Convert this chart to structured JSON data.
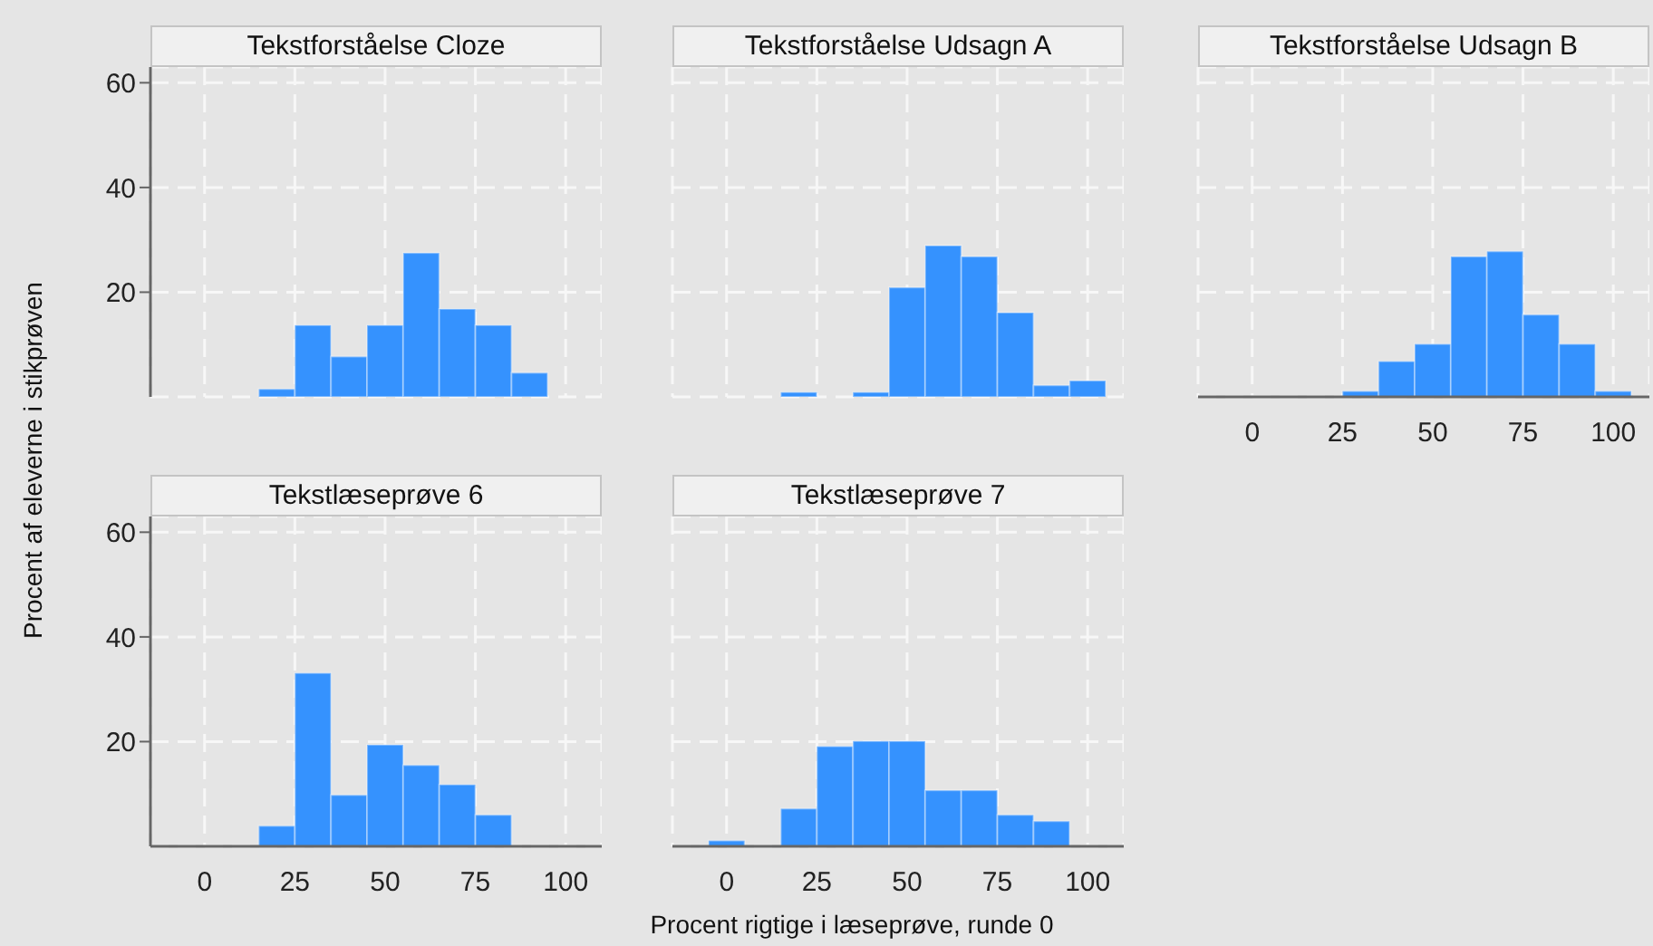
{
  "chart_data": [
    {
      "type": "histogram",
      "title": "Tekstforståelse Cloze",
      "ylabel": "Procent af eleverne i stikprøven",
      "bins": [
        15,
        25,
        35,
        45,
        55,
        65,
        75,
        85,
        95
      ],
      "values": [
        1.5,
        13.7,
        7.7,
        13.7,
        27.5,
        16.8,
        13.7,
        4.6
      ],
      "color": "#3592fe",
      "xlim": [
        -15,
        110
      ],
      "ylim": [
        0,
        63
      ],
      "xticks": [
        0,
        25,
        50,
        75,
        100
      ],
      "yticks": [
        20,
        40,
        60
      ],
      "grid": true,
      "tick_labels": "y"
    },
    {
      "type": "histogram",
      "title": "Tekstforståelse Udsagn A",
      "bins": [
        15,
        25,
        35,
        45,
        55,
        65,
        75,
        85,
        95,
        105
      ],
      "values": [
        0.9,
        0,
        0.9,
        20.9,
        28.9,
        26.8,
        16.1,
        2.2,
        3.1
      ],
      "color": "#3592fe",
      "xlim": [
        -15,
        110
      ],
      "ylim": [
        0,
        63
      ],
      "xticks": [
        0,
        25,
        50,
        75,
        100
      ],
      "yticks": [
        20,
        40,
        60
      ],
      "grid": true,
      "tick_labels": false
    },
    {
      "type": "histogram",
      "title": "Tekstforståelse Udsagn B",
      "bins": [
        25,
        35,
        45,
        55,
        65,
        75,
        85,
        95,
        105
      ],
      "values": [
        1.1,
        6.8,
        10.1,
        26.8,
        27.8,
        15.7,
        10.1,
        1.1
      ],
      "color": "#3592fe",
      "xlim": [
        -15,
        110
      ],
      "ylim": [
        0,
        63
      ],
      "xticks": [
        0,
        25,
        50,
        75,
        100
      ],
      "yticks": [
        20,
        40,
        60
      ],
      "grid": true,
      "tick_labels": "x"
    },
    {
      "type": "histogram",
      "title": "Tekstlæseprøve 6",
      "bins": [
        15,
        25,
        35,
        45,
        55,
        65,
        75,
        85
      ],
      "values": [
        3.9,
        33.1,
        9.8,
        19.4,
        15.5,
        11.8,
        6.0
      ],
      "color": "#3592fe",
      "xlim": [
        -15,
        110
      ],
      "ylim": [
        0,
        63
      ],
      "xticks": [
        0,
        25,
        50,
        75,
        100
      ],
      "yticks": [
        20,
        40,
        60
      ],
      "grid": true
    },
    {
      "type": "histogram",
      "title": "Tekstlæseprøve 7",
      "xlabel": "Procent rigtige i læseprøve, runde 0",
      "bins": [
        -5,
        5,
        15,
        25,
        35,
        45,
        55,
        65,
        75,
        85,
        95
      ],
      "values": [
        1.1,
        0,
        7.2,
        19.1,
        20.1,
        20.1,
        10.7,
        10.7,
        6.0,
        4.8
      ],
      "color": "#3592fe",
      "xlim": [
        -15,
        110
      ],
      "ylim": [
        0,
        63
      ],
      "xticks": [
        0,
        25,
        50,
        75,
        100
      ],
      "yticks": [
        20,
        40,
        60
      ],
      "grid": true,
      "tick_labels": "x"
    }
  ]
}
